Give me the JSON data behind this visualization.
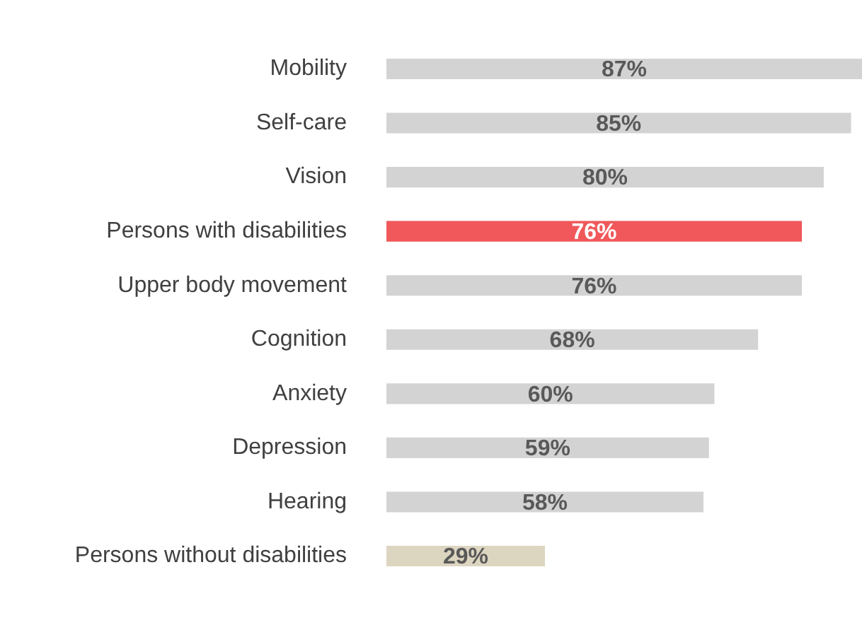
{
  "chart_data": {
    "type": "bar",
    "orientation": "horizontal",
    "categories": [
      "Mobility",
      "Self-care",
      "Vision",
      "Persons with disabilities",
      "Upper body movement",
      "Cognition",
      "Anxiety",
      "Depression",
      "Hearing",
      "Persons without disabilities"
    ],
    "values": [
      87,
      85,
      80,
      76,
      76,
      68,
      60,
      59,
      58,
      29
    ],
    "value_labels": [
      "87%",
      "85%",
      "80%",
      "76%",
      "76%",
      "68%",
      "60%",
      "59%",
      "58%",
      "29%"
    ],
    "colors": [
      "#d3d3d3",
      "#d3d3d3",
      "#d3d3d3",
      "#f0585b",
      "#d3d3d3",
      "#d3d3d3",
      "#d3d3d3",
      "#d3d3d3",
      "#d3d3d3",
      "#dcd5c0"
    ],
    "legend": false
  }
}
